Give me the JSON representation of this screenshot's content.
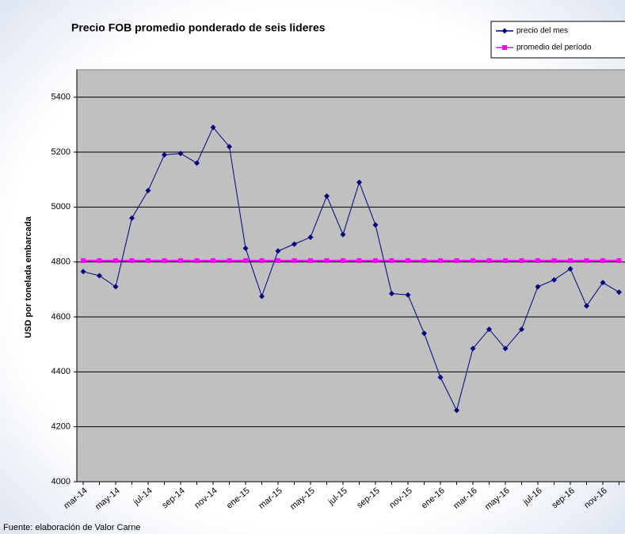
{
  "chart_data": {
    "type": "line",
    "title": "Precio FOB promedio ponderado de seis lideres",
    "y_label": "USD por tonelada embarcada",
    "source": "Fuente: elaboración de Valor Carne",
    "categories": [
      "mar-14",
      null,
      "may-14",
      null,
      "jul-14",
      null,
      "sep-14",
      null,
      "nov-14",
      null,
      "ene-15",
      null,
      "mar-15",
      null,
      "may-15",
      null,
      "jul-15",
      null,
      "sep-15",
      null,
      "nov-15",
      null,
      "ene-16",
      null,
      "mar-16",
      null,
      "may-16",
      null,
      "jul-16",
      null,
      "sep-16",
      null,
      "nov-16",
      null
    ],
    "series": [
      {
        "name": "precio del mes",
        "color": "#000080",
        "marker": "diamond",
        "values": [
          4765,
          4750,
          4710,
          4960,
          5060,
          5190,
          5195,
          5160,
          5290,
          5220,
          4850,
          4675,
          4840,
          4865,
          4890,
          5040,
          4900,
          5090,
          4935,
          4685,
          4680,
          4540,
          4380,
          4260,
          4485,
          4555,
          4485,
          4555,
          4710,
          4735,
          4775,
          4640,
          4725,
          4690
        ]
      },
      {
        "name": "promedio del período",
        "color": "#ff00ff",
        "marker": "square",
        "values": [
          4805,
          4805,
          4805,
          4805,
          4805,
          4805,
          4805,
          4805,
          4805,
          4805,
          4805,
          4805,
          4805,
          4805,
          4805,
          4805,
          4805,
          4805,
          4805,
          4805,
          4805,
          4805,
          4805,
          4805,
          4805,
          4805,
          4805,
          4805,
          4805,
          4805,
          4805,
          4805,
          4805,
          4805
        ]
      }
    ],
    "ylim": [
      4000,
      5500
    ],
    "yticks": [
      4000,
      4200,
      4400,
      4600,
      4800,
      5000,
      5200,
      5400
    ],
    "grid": true,
    "legend": "top-right"
  }
}
